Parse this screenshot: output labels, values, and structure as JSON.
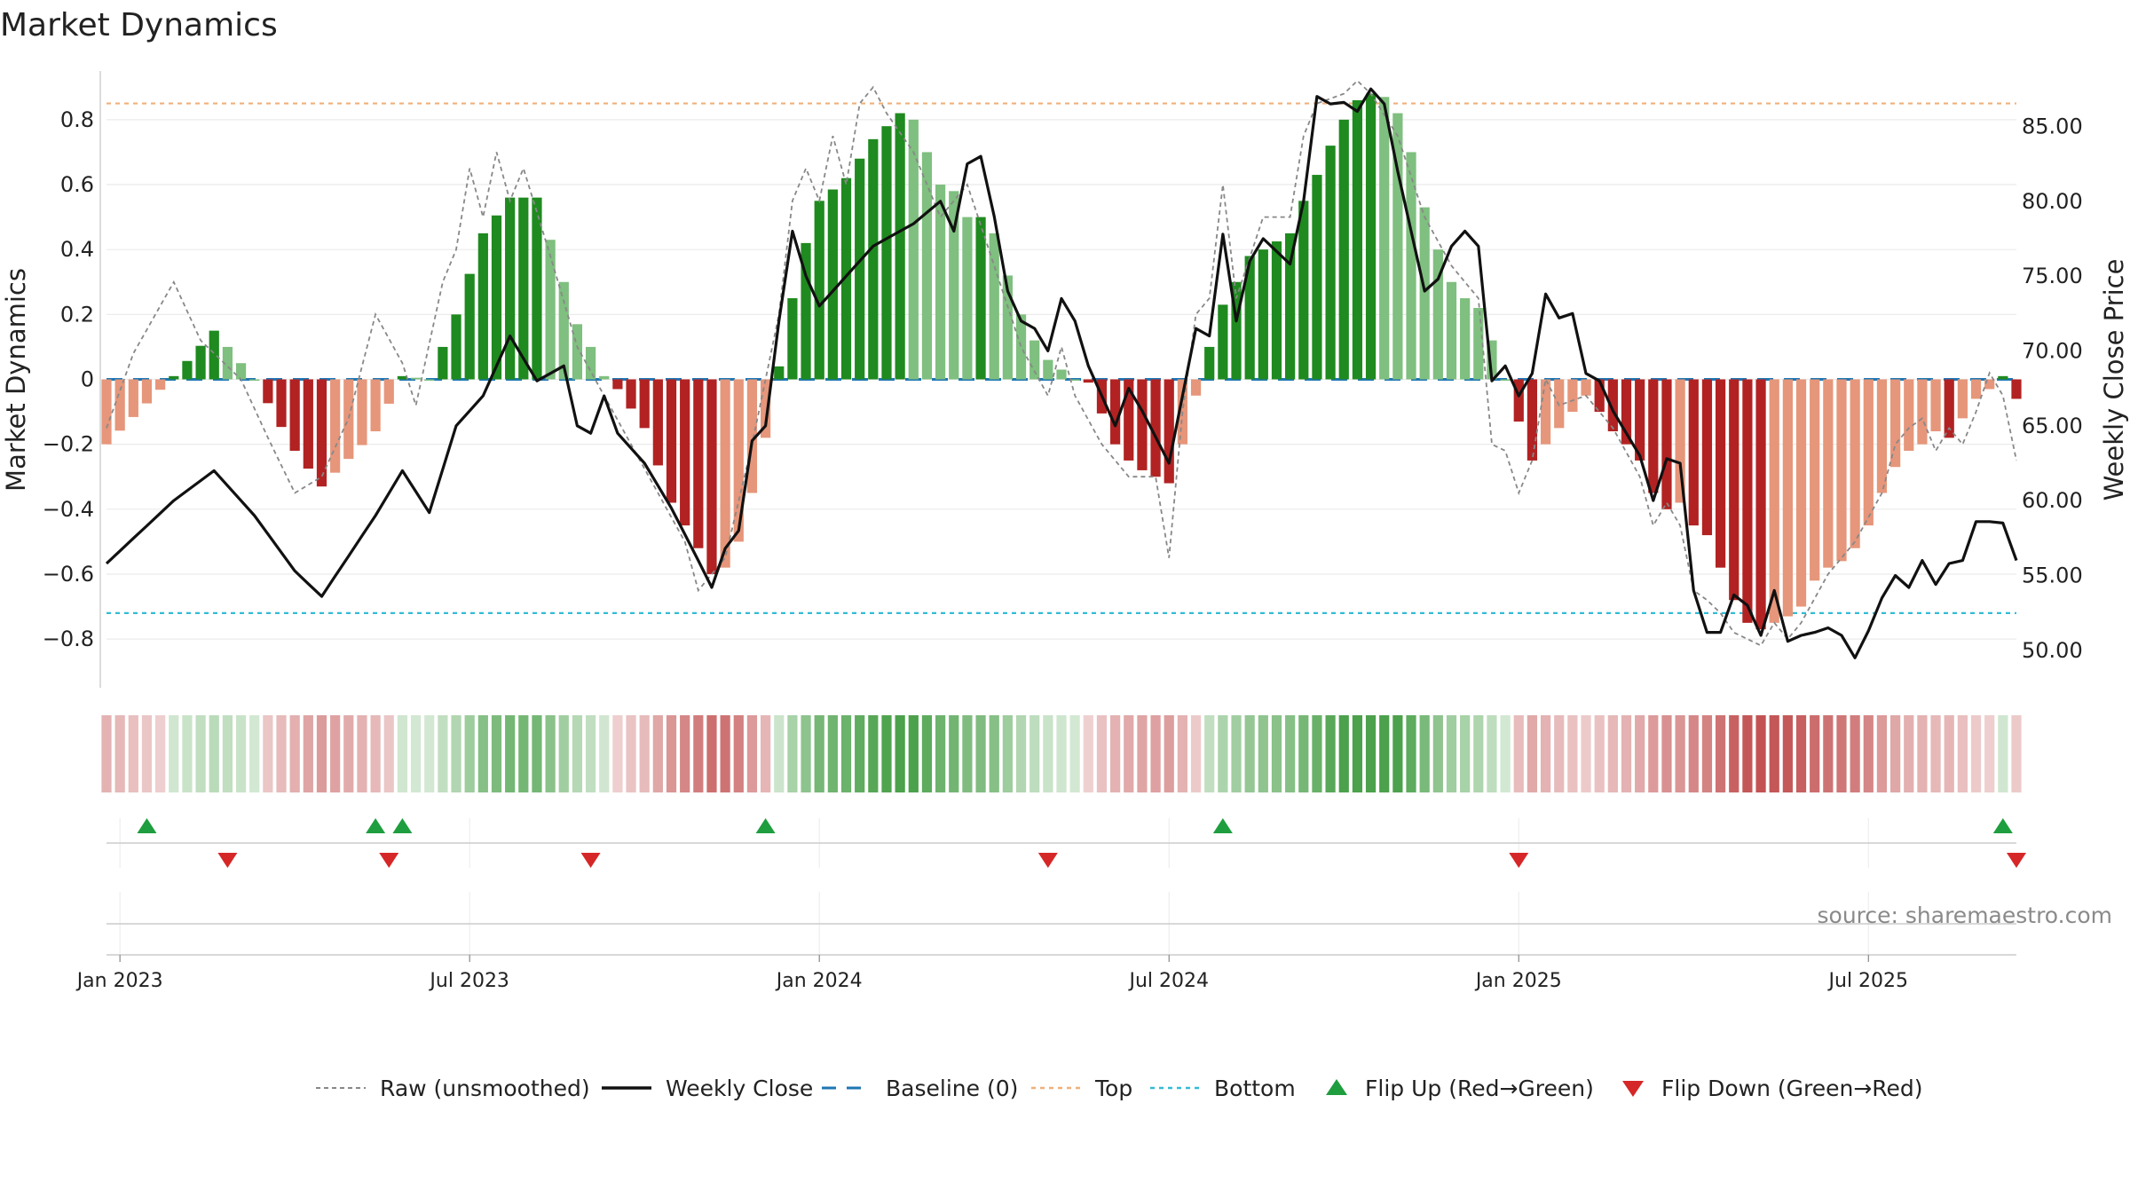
{
  "chart_data": {
    "type": "bar",
    "title": "Market Dynamics",
    "ylabel": "Market Dynamics",
    "y2label": "Weekly Close Price",
    "ylim": [
      -0.95,
      0.95
    ],
    "y2lim": [
      47.5,
      88.7
    ],
    "yticks": [
      {
        "value": 0.8,
        "label": "0.8"
      },
      {
        "value": 0.6,
        "label": "0.6"
      },
      {
        "value": 0.4,
        "label": "0.4"
      },
      {
        "value": 0.2,
        "label": "0.2"
      },
      {
        "value": 0,
        "label": "0"
      },
      {
        "value": -0.2,
        "label": "−0.2"
      },
      {
        "value": -0.4,
        "label": "−0.4"
      },
      {
        "value": -0.6,
        "label": "−0.6"
      },
      {
        "value": -0.8,
        "label": "−0.8"
      }
    ],
    "y2ticks": [
      {
        "value": 85,
        "label": "85.00"
      },
      {
        "value": 80,
        "label": "80.00"
      },
      {
        "value": 75,
        "label": "75.00"
      },
      {
        "value": 70,
        "label": "70.00"
      },
      {
        "value": 65,
        "label": "65.00"
      },
      {
        "value": 60,
        "label": "60.00"
      },
      {
        "value": 55,
        "label": "55.00"
      },
      {
        "value": 50,
        "label": "50.00"
      }
    ],
    "xticks": [
      {
        "week": 1,
        "label": "Jan 2023"
      },
      {
        "week": 27,
        "label": "Jul 2023"
      },
      {
        "week": 53,
        "label": "Jan 2024"
      },
      {
        "week": 79,
        "label": "Jul 2024"
      },
      {
        "week": 105,
        "label": "Jan 2025"
      },
      {
        "week": 131,
        "label": "Jul 2025"
      }
    ],
    "top_threshold": 0.85,
    "bottom_threshold": -0.72,
    "baseline": 0,
    "weeks_total": 142,
    "colors": {
      "strong_green": "#1f8a1f",
      "weak_green": "#7fbf7f",
      "strong_red": "#b22222",
      "weak_red": "#e6967a",
      "raw": "#888888",
      "close": "#111111",
      "baseline": "#1f77b4",
      "top": "#f0b07a",
      "bottom": "#33bcd4",
      "flip_up": "#1e9e3e",
      "flip_down": "#d62728"
    },
    "anchors": [
      {
        "w": 0,
        "m": -0.2,
        "c": 55.8
      },
      {
        "w": 5,
        "m": 0.01,
        "c": 60
      },
      {
        "w": 8,
        "m": 0.15,
        "c": 62
      },
      {
        "w": 11,
        "m": 0,
        "c": 59
      },
      {
        "w": 14,
        "m": -0.22,
        "c": 55.3
      },
      {
        "w": 16,
        "m": -0.33,
        "c": 53.6
      },
      {
        "w": 20,
        "m": -0.16,
        "c": 59
      },
      {
        "w": 22,
        "m": 0.01,
        "c": 62
      },
      {
        "w": 24,
        "m": 0,
        "c": 59.2
      },
      {
        "w": 26,
        "m": 0.2,
        "c": 65
      },
      {
        "w": 28,
        "m": 0.45,
        "c": 67
      },
      {
        "w": 30,
        "m": 0.56,
        "c": 71
      },
      {
        "w": 32,
        "m": 0.56,
        "c": 68
      },
      {
        "w": 34,
        "m": 0.3,
        "c": 69
      },
      {
        "w": 35,
        "m": 0.17,
        "c": 65
      },
      {
        "w": 36,
        "m": 0.1,
        "c": 64.5
      },
      {
        "w": 37,
        "m": 0.01,
        "c": 67
      },
      {
        "w": 38,
        "m": -0.03,
        "c": 64.5
      },
      {
        "w": 40,
        "m": -0.15,
        "c": 62.5
      },
      {
        "w": 42,
        "m": -0.38,
        "c": 59.5
      },
      {
        "w": 44,
        "m": -0.52,
        "c": 56
      },
      {
        "w": 45,
        "m": -0.6,
        "c": 54.2
      },
      {
        "w": 46,
        "m": -0.58,
        "c": 56.8
      },
      {
        "w": 47,
        "m": -0.5,
        "c": 58
      },
      {
        "w": 48,
        "m": -0.35,
        "c": 64
      },
      {
        "w": 49,
        "m": -0.18,
        "c": 65
      },
      {
        "w": 50,
        "m": 0.04,
        "c": 72
      },
      {
        "w": 51,
        "m": 0.25,
        "c": 78
      },
      {
        "w": 52,
        "m": 0.42,
        "c": 75
      },
      {
        "w": 53,
        "m": 0.55,
        "c": 73
      },
      {
        "w": 55,
        "m": 0.62,
        "c": 75
      },
      {
        "w": 57,
        "m": 0.74,
        "c": 77
      },
      {
        "w": 59,
        "m": 0.82,
        "c": 78
      },
      {
        "w": 60,
        "m": 0.8,
        "c": 78.5
      },
      {
        "w": 62,
        "m": 0.6,
        "c": 80
      },
      {
        "w": 63,
        "m": 0.58,
        "c": 78
      },
      {
        "w": 64,
        "m": 0.5,
        "c": 82.5
      },
      {
        "w": 65,
        "m": 0.5,
        "c": 83
      },
      {
        "w": 66,
        "m": 0.45,
        "c": 79
      },
      {
        "w": 67,
        "m": 0.32,
        "c": 74
      },
      {
        "w": 68,
        "m": 0.2,
        "c": 72
      },
      {
        "w": 69,
        "m": 0.12,
        "c": 71.5
      },
      {
        "w": 70,
        "m": 0.06,
        "c": 70
      },
      {
        "w": 71,
        "m": 0.03,
        "c": 73.5
      },
      {
        "w": 72,
        "m": 0,
        "c": 72
      },
      {
        "w": 73,
        "m": -0.01,
        "c": 69
      },
      {
        "w": 75,
        "m": -0.2,
        "c": 65
      },
      {
        "w": 76,
        "m": -0.25,
        "c": 67.5
      },
      {
        "w": 77,
        "m": -0.28,
        "c": 66
      },
      {
        "w": 79,
        "m": -0.32,
        "c": 62.5
      },
      {
        "w": 80,
        "m": -0.2,
        "c": 67
      },
      {
        "w": 81,
        "m": -0.05,
        "c": 71.5
      },
      {
        "w": 82,
        "m": 0.1,
        "c": 71
      },
      {
        "w": 83,
        "m": 0.23,
        "c": 77.8
      },
      {
        "w": 84,
        "m": 0.3,
        "c": 72
      },
      {
        "w": 85,
        "m": 0.38,
        "c": 76
      },
      {
        "w": 86,
        "m": 0.4,
        "c": 77.5
      },
      {
        "w": 88,
        "m": 0.45,
        "c": 75.8
      },
      {
        "w": 89,
        "m": 0.55,
        "c": 80
      },
      {
        "w": 90,
        "m": 0.63,
        "c": 87
      },
      {
        "w": 91,
        "m": 0.72,
        "c": 86.5
      },
      {
        "w": 92,
        "m": 0.8,
        "c": 86.6
      },
      {
        "w": 93,
        "m": 0.86,
        "c": 86
      },
      {
        "w": 94,
        "m": 0.88,
        "c": 87.5
      },
      {
        "w": 95,
        "m": 0.87,
        "c": 86.5
      },
      {
        "w": 96,
        "m": 0.82,
        "c": 82
      },
      {
        "w": 97,
        "m": 0.7,
        "c": 78
      },
      {
        "w": 98,
        "m": 0.53,
        "c": 74
      },
      {
        "w": 99,
        "m": 0.4,
        "c": 74.8
      },
      {
        "w": 100,
        "m": 0.3,
        "c": 77
      },
      {
        "w": 101,
        "m": 0.25,
        "c": 78
      },
      {
        "w": 102,
        "m": 0.22,
        "c": 77
      },
      {
        "w": 103,
        "m": 0.12,
        "c": 68
      },
      {
        "w": 104,
        "m": 0,
        "c": 69
      },
      {
        "w": 105,
        "m": -0.13,
        "c": 67
      },
      {
        "w": 106,
        "m": -0.25,
        "c": 68.5
      },
      {
        "w": 107,
        "m": -0.2,
        "c": 73.8
      },
      {
        "w": 108,
        "m": -0.15,
        "c": 72.2
      },
      {
        "w": 109,
        "m": -0.1,
        "c": 72.5
      },
      {
        "w": 110,
        "m": -0.05,
        "c": 68.5
      },
      {
        "w": 111,
        "m": -0.1,
        "c": 68
      },
      {
        "w": 112,
        "m": -0.16,
        "c": 66
      },
      {
        "w": 113,
        "m": -0.2,
        "c": 64.5
      },
      {
        "w": 114,
        "m": -0.25,
        "c": 63
      },
      {
        "w": 115,
        "m": -0.35,
        "c": 60
      },
      {
        "w": 116,
        "m": -0.4,
        "c": 62.8
      },
      {
        "w": 117,
        "m": -0.38,
        "c": 62.5
      },
      {
        "w": 118,
        "m": -0.45,
        "c": 54
      },
      {
        "w": 119,
        "m": -0.48,
        "c": 51.2
      },
      {
        "w": 120,
        "m": -0.58,
        "c": 51.2
      },
      {
        "w": 121,
        "m": -0.68,
        "c": 53.7
      },
      {
        "w": 122,
        "m": -0.75,
        "c": 53
      },
      {
        "w": 123,
        "m": -0.77,
        "c": 51
      },
      {
        "w": 124,
        "m": -0.75,
        "c": 54
      },
      {
        "w": 125,
        "m": -0.73,
        "c": 50.6
      },
      {
        "w": 126,
        "m": -0.7,
        "c": 51
      },
      {
        "w": 127,
        "m": -0.62,
        "c": 51.2
      },
      {
        "w": 128,
        "m": -0.58,
        "c": 51.5
      },
      {
        "w": 129,
        "m": -0.56,
        "c": 51
      },
      {
        "w": 130,
        "m": -0.52,
        "c": 49.5
      },
      {
        "w": 131,
        "m": -0.45,
        "c": 51.3
      },
      {
        "w": 132,
        "m": -0.35,
        "c": 53.5
      },
      {
        "w": 133,
        "m": -0.27,
        "c": 55
      },
      {
        "w": 134,
        "m": -0.22,
        "c": 54.2
      },
      {
        "w": 135,
        "m": -0.2,
        "c": 56
      },
      {
        "w": 136,
        "m": -0.16,
        "c": 54.4
      },
      {
        "w": 137,
        "m": -0.18,
        "c": 55.8
      },
      {
        "w": 138,
        "m": -0.12,
        "c": 56
      },
      {
        "w": 139,
        "m": -0.06,
        "c": 58.6
      },
      {
        "w": 140,
        "m": -0.03,
        "c": 58.6
      },
      {
        "w": 141,
        "m": 0.01,
        "c": 58.5
      },
      {
        "w": 142,
        "m": -0.06,
        "c": 56
      }
    ],
    "raw_anchors": [
      {
        "w": 0,
        "v": -0.15
      },
      {
        "w": 2,
        "v": 0.08
      },
      {
        "w": 5,
        "v": 0.3
      },
      {
        "w": 7,
        "v": 0.12
      },
      {
        "w": 10,
        "v": 0
      },
      {
        "w": 12,
        "v": -0.18
      },
      {
        "w": 14,
        "v": -0.35
      },
      {
        "w": 16,
        "v": -0.3
      },
      {
        "w": 18,
        "v": -0.12
      },
      {
        "w": 20,
        "v": 0.2
      },
      {
        "w": 22,
        "v": 0.05
      },
      {
        "w": 23,
        "v": -0.08
      },
      {
        "w": 25,
        "v": 0.3
      },
      {
        "w": 26,
        "v": 0.4
      },
      {
        "w": 27,
        "v": 0.65
      },
      {
        "w": 28,
        "v": 0.5
      },
      {
        "w": 29,
        "v": 0.7
      },
      {
        "w": 30,
        "v": 0.55
      },
      {
        "w": 31,
        "v": 0.65
      },
      {
        "w": 33,
        "v": 0.38
      },
      {
        "w": 35,
        "v": 0.1
      },
      {
        "w": 37,
        "v": -0.05
      },
      {
        "w": 39,
        "v": -0.2
      },
      {
        "w": 41,
        "v": -0.35
      },
      {
        "w": 43,
        "v": -0.5
      },
      {
        "w": 44,
        "v": -0.65
      },
      {
        "w": 46,
        "v": -0.55
      },
      {
        "w": 48,
        "v": -0.2
      },
      {
        "w": 50,
        "v": 0.2
      },
      {
        "w": 51,
        "v": 0.55
      },
      {
        "w": 52,
        "v": 0.65
      },
      {
        "w": 53,
        "v": 0.55
      },
      {
        "w": 54,
        "v": 0.75
      },
      {
        "w": 55,
        "v": 0.6
      },
      {
        "w": 56,
        "v": 0.85
      },
      {
        "w": 57,
        "v": 0.9
      },
      {
        "w": 58,
        "v": 0.82
      },
      {
        "w": 60,
        "v": 0.7
      },
      {
        "w": 62,
        "v": 0.5
      },
      {
        "w": 64,
        "v": 0.6
      },
      {
        "w": 66,
        "v": 0.35
      },
      {
        "w": 68,
        "v": 0.1
      },
      {
        "w": 70,
        "v": -0.05
      },
      {
        "w": 71,
        "v": 0.1
      },
      {
        "w": 72,
        "v": -0.05
      },
      {
        "w": 74,
        "v": -0.2
      },
      {
        "w": 76,
        "v": -0.3
      },
      {
        "w": 78,
        "v": -0.3
      },
      {
        "w": 79,
        "v": -0.55
      },
      {
        "w": 80,
        "v": -0.1
      },
      {
        "w": 81,
        "v": 0.2
      },
      {
        "w": 82,
        "v": 0.25
      },
      {
        "w": 83,
        "v": 0.6
      },
      {
        "w": 84,
        "v": 0.25
      },
      {
        "w": 86,
        "v": 0.5
      },
      {
        "w": 88,
        "v": 0.5
      },
      {
        "w": 89,
        "v": 0.75
      },
      {
        "w": 90,
        "v": 0.85
      },
      {
        "w": 92,
        "v": 0.88
      },
      {
        "w": 93,
        "v": 0.92
      },
      {
        "w": 94,
        "v": 0.88
      },
      {
        "w": 96,
        "v": 0.75
      },
      {
        "w": 98,
        "v": 0.5
      },
      {
        "w": 100,
        "v": 0.35
      },
      {
        "w": 102,
        "v": 0.25
      },
      {
        "w": 103,
        "v": -0.2
      },
      {
        "w": 104,
        "v": -0.22
      },
      {
        "w": 105,
        "v": -0.35
      },
      {
        "w": 106,
        "v": -0.25
      },
      {
        "w": 107,
        "v": 0
      },
      {
        "w": 108,
        "v": -0.08
      },
      {
        "w": 110,
        "v": -0.05
      },
      {
        "w": 112,
        "v": -0.15
      },
      {
        "w": 114,
        "v": -0.3
      },
      {
        "w": 115,
        "v": -0.45
      },
      {
        "w": 116,
        "v": -0.38
      },
      {
        "w": 117,
        "v": -0.45
      },
      {
        "w": 118,
        "v": -0.65
      },
      {
        "w": 119,
        "v": -0.68
      },
      {
        "w": 120,
        "v": -0.72
      },
      {
        "w": 121,
        "v": -0.78
      },
      {
        "w": 122,
        "v": -0.8
      },
      {
        "w": 123,
        "v": -0.82
      },
      {
        "w": 124,
        "v": -0.75
      },
      {
        "w": 125,
        "v": -0.8
      },
      {
        "w": 126,
        "v": -0.75
      },
      {
        "w": 128,
        "v": -0.6
      },
      {
        "w": 130,
        "v": -0.5
      },
      {
        "w": 132,
        "v": -0.35
      },
      {
        "w": 133,
        "v": -0.2
      },
      {
        "w": 134,
        "v": -0.15
      },
      {
        "w": 135,
        "v": -0.12
      },
      {
        "w": 136,
        "v": -0.22
      },
      {
        "w": 137,
        "v": -0.15
      },
      {
        "w": 138,
        "v": -0.2
      },
      {
        "w": 139,
        "v": -0.1
      },
      {
        "w": 140,
        "v": 0.02
      },
      {
        "w": 141,
        "v": -0.05
      },
      {
        "w": 142,
        "v": -0.25
      }
    ],
    "flip_up_weeks": [
      3,
      20,
      22,
      49,
      83,
      141
    ],
    "flip_down_weeks": [
      9,
      21,
      36,
      70,
      105,
      142
    ],
    "source": "source: sharemaestro.com",
    "legend": [
      {
        "key": "raw",
        "label": "Raw (unsmoothed)"
      },
      {
        "key": "close",
        "label": "Weekly Close"
      },
      {
        "key": "baseline",
        "label": "Baseline (0)"
      },
      {
        "key": "top",
        "label": "Top"
      },
      {
        "key": "bottom",
        "label": "Bottom"
      },
      {
        "key": "flip_up",
        "label": "Flip Up (Red→Green)"
      },
      {
        "key": "flip_down",
        "label": "Flip Down (Green→Red)"
      }
    ],
    "legend_position": "bottom-center"
  }
}
